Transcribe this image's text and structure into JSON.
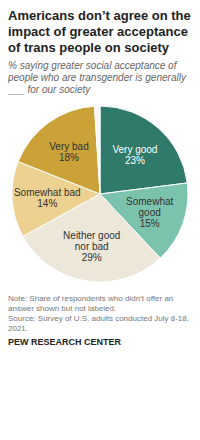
{
  "chart_data": {
    "type": "pie",
    "title": "Americans don’t agree on the impact of greater acceptance of trans people on society",
    "subtitle": "% saying greater social acceptance of people who are transgender is generally ___ for our society",
    "categories": [
      "Very good",
      "Somewhat good",
      "Neither good nor bad",
      "Somewhat bad",
      "Very bad",
      null
    ],
    "values": [
      23,
      15,
      29,
      14,
      18,
      1
    ],
    "value_labels": [
      "23%",
      "15%",
      "29%",
      "14%",
      "18%",
      null
    ],
    "colors": [
      "#2f7a6b",
      "#7cc3ae",
      "#ede7da",
      "#ecd190",
      "#caa238",
      "#f7f7f7"
    ],
    "data_labels": true,
    "note": "Note: Share of respondents who didn’t offer an answer shown but not labeled.",
    "source": "Source: Survey of U.S. adults conducted July 8-18, 2021.",
    "credit": "PEW RESEARCH CENTER"
  }
}
